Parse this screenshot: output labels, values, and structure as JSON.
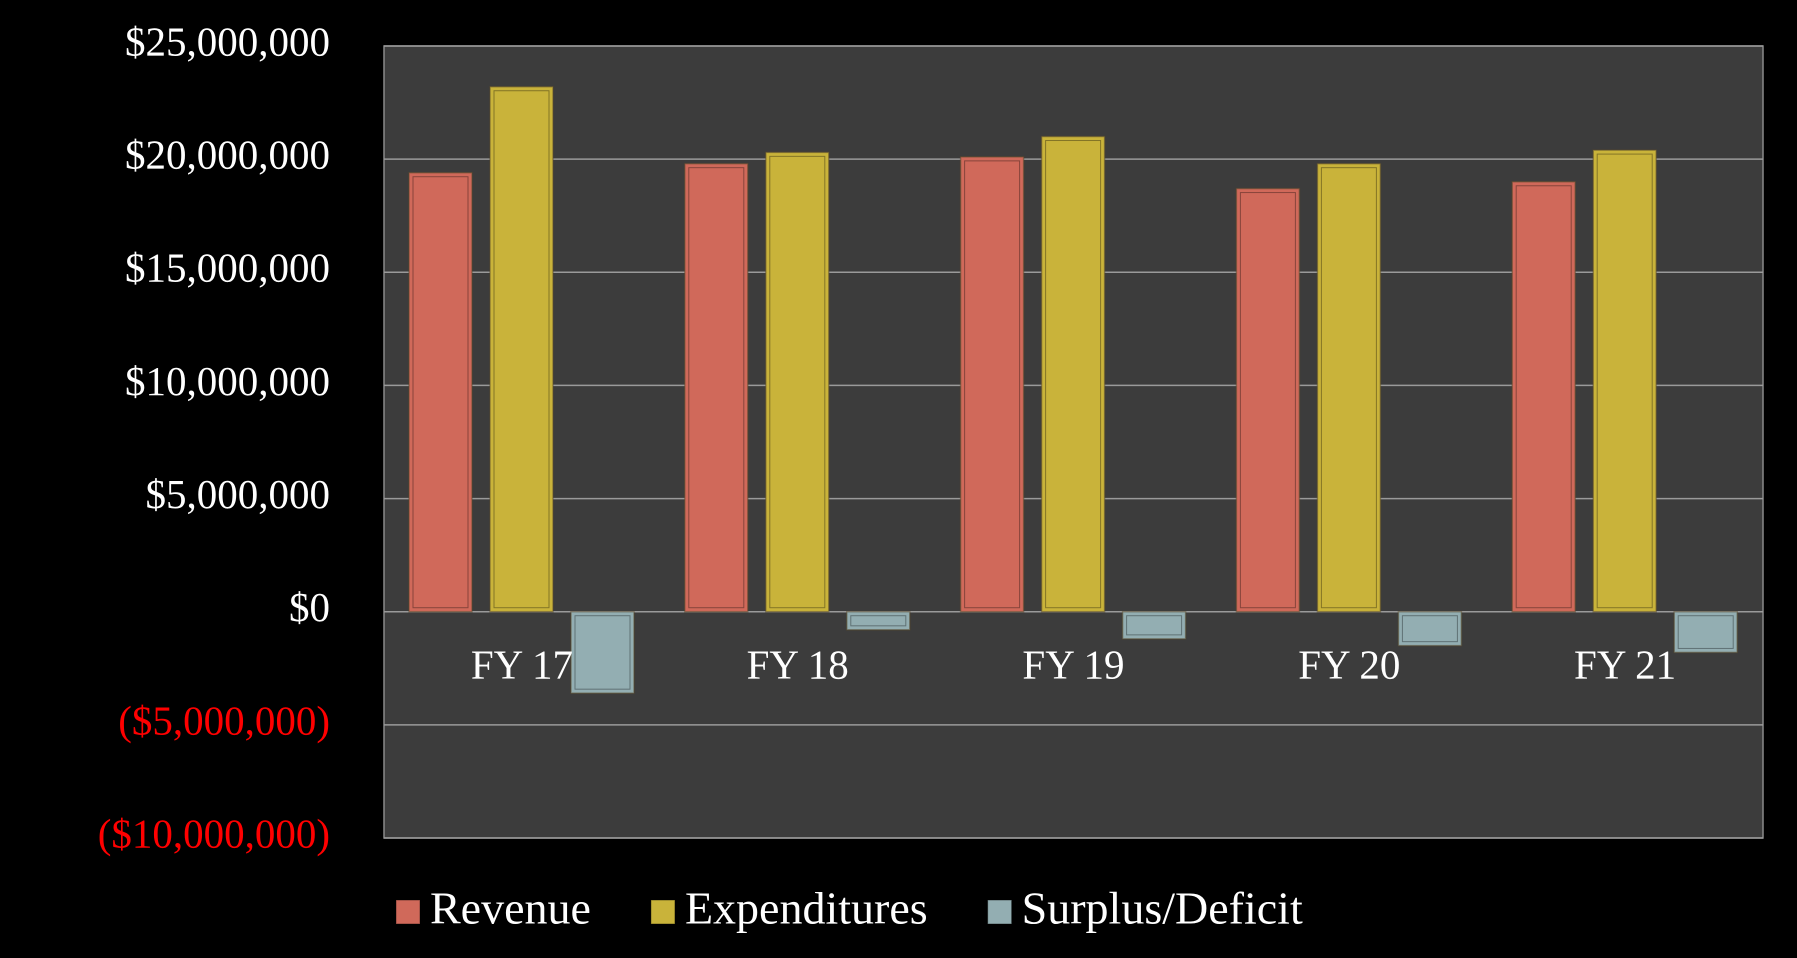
{
  "chart_data": {
    "type": "bar",
    "categories": [
      "FY 17",
      "FY 18",
      "FY 19",
      "FY 20",
      "FY 21"
    ],
    "series": [
      {
        "name": "Revenue",
        "color": "#d0695a",
        "values": [
          19400000,
          19800000,
          20100000,
          18700000,
          19000000
        ]
      },
      {
        "name": "Expenditures",
        "color": "#c9b33a",
        "values": [
          23200000,
          20300000,
          21000000,
          19800000,
          20400000
        ]
      },
      {
        "name": "Surplus/Deficit",
        "color": "#93aeb2",
        "values": [
          -3600000,
          -800000,
          -1200000,
          -1500000,
          -1800000
        ]
      }
    ],
    "ylim": [
      -10000000,
      25000000
    ],
    "yticks": [
      {
        "value": -10000000,
        "label": "($10,000,000)"
      },
      {
        "value": -5000000,
        "label": "($5,000,000)"
      },
      {
        "value": 0,
        "label": "$0"
      },
      {
        "value": 5000000,
        "label": "$5,000,000"
      },
      {
        "value": 10000000,
        "label": "$10,000,000"
      },
      {
        "value": 15000000,
        "label": "$15,000,000"
      },
      {
        "value": 20000000,
        "label": "$20,000,000"
      },
      {
        "value": 25000000,
        "label": "$25,000,000"
      }
    ],
    "grid": true,
    "legend": "bottom",
    "negative_label_color": "#ff0000"
  }
}
